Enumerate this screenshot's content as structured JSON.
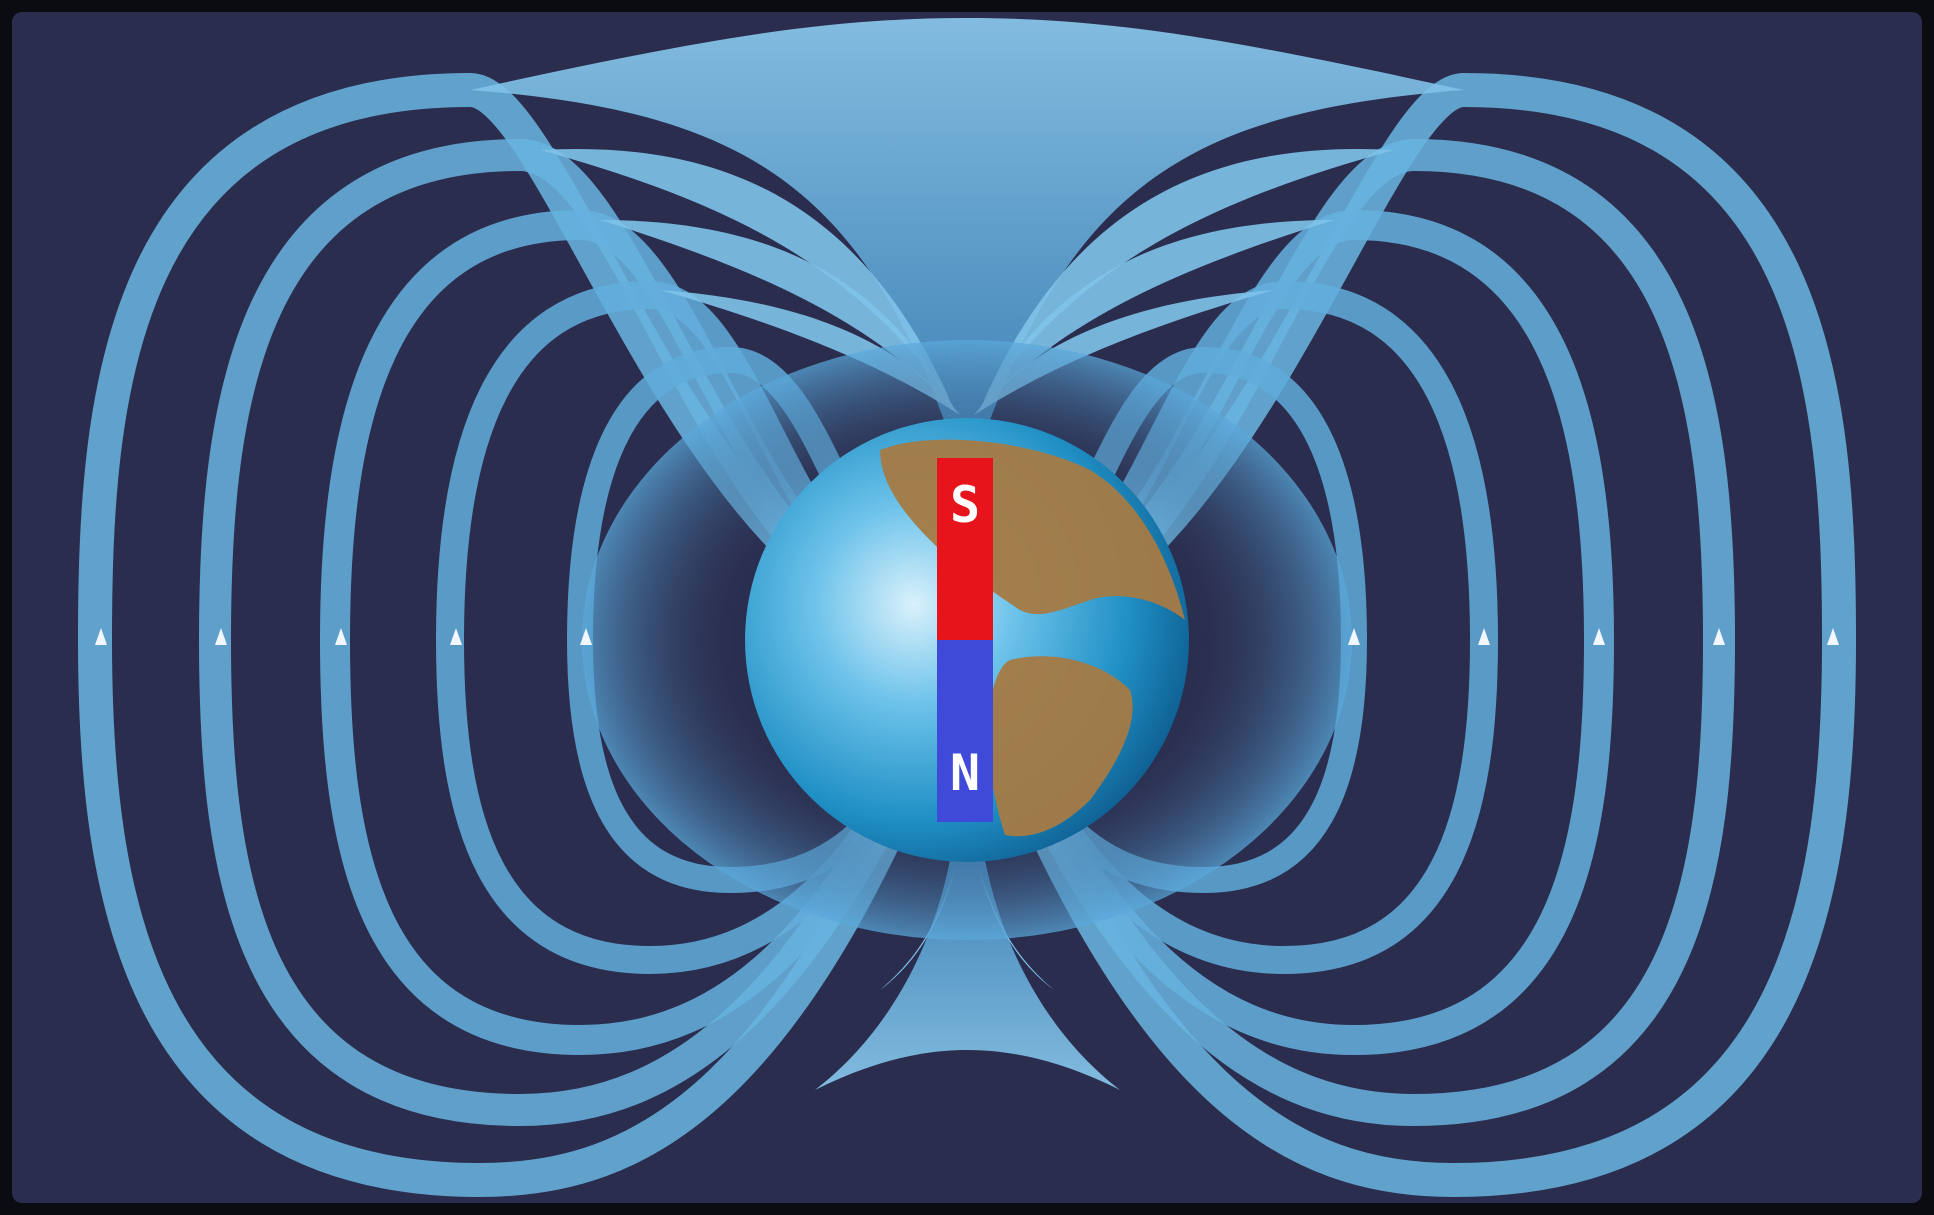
{
  "colors": {
    "background": "#2a2d4e",
    "frame": "#0b0b12",
    "field_line": "#5fb0de",
    "field_line_light": "#a9dcf5",
    "ocean": "#1f8fc4",
    "land": "#a57a44",
    "magnet_south": "#e8141b",
    "magnet_north": "#3f4ad8",
    "arrow": "#f2f6ff"
  },
  "magnet": {
    "south_label": "S",
    "north_label": "N"
  },
  "icons": {
    "earth": "earth-globe-icon",
    "magnet": "bar-magnet-icon",
    "arrow": "arrow-up-icon"
  }
}
